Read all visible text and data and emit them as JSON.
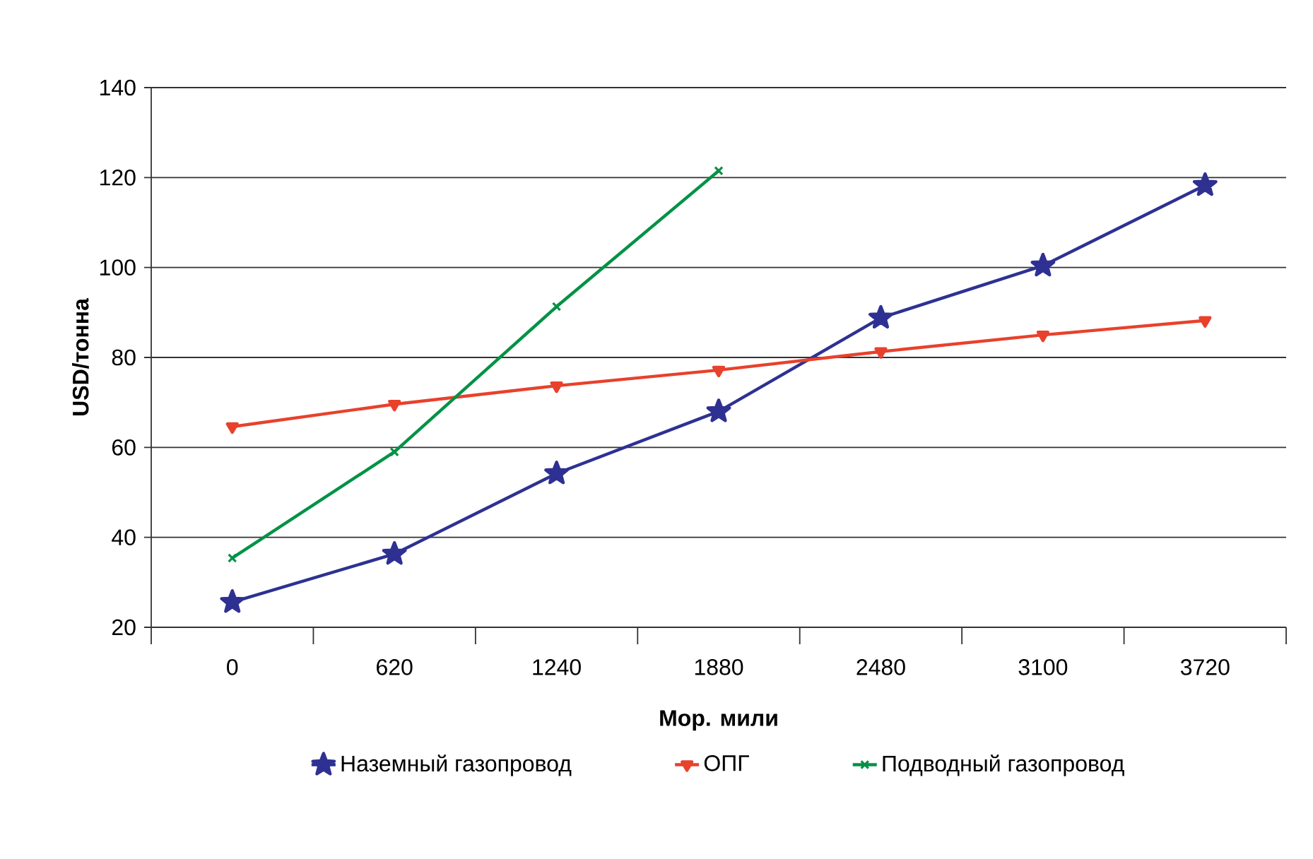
{
  "chart_data": {
    "type": "line",
    "xlabel": "Мор. мили",
    "ylabel": "USD/тонна",
    "categories": [
      "0",
      "620",
      "1240",
      "1880",
      "2480",
      "3100",
      "3720"
    ],
    "series": [
      {
        "name": "Наземный газопровод",
        "color": "#2e3192",
        "marker": "star",
        "values": [
          25.6,
          36.3,
          54.2,
          68,
          88.8,
          100.4,
          118.3
        ]
      },
      {
        "name": "ОПГ",
        "color": "#e8412c",
        "marker": "triangle",
        "values": [
          64.6,
          69.6,
          73.7,
          77.2,
          81.3,
          85,
          88.2
        ]
      },
      {
        "name": "Подводный газопровод",
        "color": "#009245",
        "marker": "cross",
        "values": [
          35.4,
          59,
          91.3,
          121.5,
          null,
          null,
          null
        ]
      }
    ],
    "ylim": [
      20,
      140
    ],
    "yticks": [
      20,
      40,
      60,
      80,
      100,
      120,
      140
    ],
    "grid": "y",
    "legend": "bottom",
    "line_style": "solid"
  }
}
